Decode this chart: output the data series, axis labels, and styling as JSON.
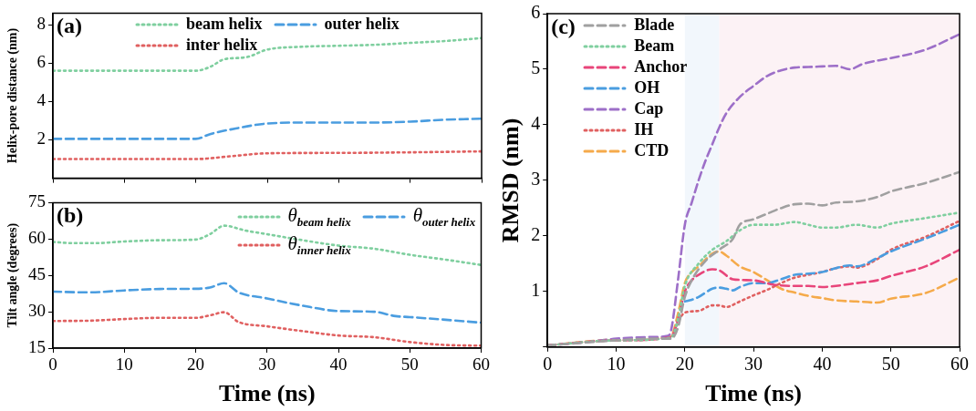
{
  "chart_data": [
    {
      "type": "line",
      "annotations": [
        "(a)"
      ],
      "ylabel": "Helix-pore distance (nm)",
      "xlim": [
        0,
        60
      ],
      "xticks": [
        0,
        10,
        20,
        30,
        40,
        50,
        60
      ],
      "ylim": [
        0,
        8.6
      ],
      "yticks": [
        2,
        4,
        6,
        8
      ],
      "tick_labels": "y",
      "legend": "top",
      "series": [
        {
          "name": "beam helix",
          "color": "#7fcf9f",
          "line_style": "dotted",
          "x": [
            0,
            5,
            10,
            15,
            20,
            22,
            24,
            27,
            30,
            35,
            40,
            45,
            50,
            55,
            60
          ],
          "values": [
            5.6,
            5.6,
            5.6,
            5.6,
            5.6,
            5.8,
            6.2,
            6.3,
            6.7,
            6.85,
            6.9,
            6.95,
            7.05,
            7.15,
            7.3
          ]
        },
        {
          "name": "outer helix",
          "color": "#4a9de0",
          "line_style": "dashed",
          "x": [
            0,
            5,
            10,
            15,
            20,
            22,
            25,
            30,
            35,
            40,
            45,
            50,
            55,
            60
          ],
          "values": [
            2.05,
            2.05,
            2.05,
            2.05,
            2.05,
            2.3,
            2.55,
            2.85,
            2.9,
            2.9,
            2.9,
            2.95,
            3.05,
            3.1
          ]
        },
        {
          "name": "inter  helix",
          "color": "#e06060",
          "line_style": "dotted",
          "x": [
            0,
            5,
            10,
            15,
            20,
            25,
            30,
            40,
            50,
            60
          ],
          "values": [
            1,
            1,
            1,
            1,
            1,
            1.15,
            1.3,
            1.32,
            1.35,
            1.4
          ]
        }
      ]
    },
    {
      "type": "line",
      "annotations": [
        "(b)"
      ],
      "xlabel": "Time (ns)",
      "ylabel": "Tilt angle (degrees)",
      "xlim": [
        0,
        60
      ],
      "xticks": [
        0,
        10,
        20,
        30,
        40,
        50,
        60
      ],
      "ylim": [
        15,
        75
      ],
      "yticks": [
        15,
        30,
        45,
        60,
        75
      ],
      "legend": "top right",
      "series": [
        {
          "name": "θ$_{beam helix}$",
          "color": "#7fcf9f",
          "line_style": "dotted",
          "x": [
            0,
            3,
            6,
            10,
            15,
            20,
            22,
            24,
            27,
            30,
            35,
            40,
            45,
            50,
            55,
            60
          ],
          "values": [
            58.8,
            58.3,
            58.3,
            59,
            59.5,
            59.8,
            62,
            65.5,
            63.5,
            62,
            59.5,
            57.3,
            56,
            53.5,
            51.5,
            49.3
          ]
        },
        {
          "name": "θ$_{outer helix}$",
          "color": "#4a9de0",
          "line_style": "dashed",
          "x": [
            0,
            5,
            10,
            15,
            20,
            22,
            24,
            26,
            30,
            35,
            40,
            45,
            48,
            50,
            55,
            60
          ],
          "values": [
            38.3,
            38,
            38.8,
            39.4,
            39.5,
            40,
            41.8,
            38,
            35.5,
            32.5,
            30.3,
            30,
            28.2,
            27.8,
            26.7,
            25.5
          ]
        },
        {
          "name": "θ$_{inner helix}$",
          "color": "#e06060",
          "line_style": "dotted",
          "x": [
            0,
            5,
            10,
            15,
            20,
            22,
            24,
            26,
            30,
            35,
            40,
            45,
            50,
            55,
            60
          ],
          "values": [
            26.2,
            26.3,
            27,
            27.5,
            27.5,
            28.5,
            29.8,
            25.8,
            24,
            22,
            20.2,
            19.5,
            17.5,
            16.3,
            16
          ]
        }
      ]
    },
    {
      "type": "line",
      "annotations": [
        "(c)"
      ],
      "xlabel": "Time (ns)",
      "ylabel": "RMSD (nm)",
      "xlim": [
        0,
        60
      ],
      "xticks": [
        0,
        10,
        20,
        30,
        40,
        50,
        60
      ],
      "ylim": [
        0,
        6
      ],
      "yticks": [
        {
          "value": 0,
          "label": null
        },
        1,
        2,
        3,
        4,
        5,
        6
      ],
      "legend": "top left",
      "bands": [
        {
          "axis": "x",
          "from": 20,
          "to": 25,
          "color": "#f2f7fc"
        },
        {
          "axis": "x",
          "from": 25,
          "to": 60,
          "color": "#fcf2f5"
        }
      ],
      "series": [
        {
          "name": "Blade",
          "color": "#a0a0a0",
          "line_style": "dashed",
          "x": [
            0,
            10,
            15,
            18,
            19,
            20,
            21,
            23,
            25,
            27,
            28,
            30,
            32,
            34,
            36,
            38,
            40,
            42,
            45,
            48,
            50,
            55,
            60
          ],
          "values": [
            0.03,
            0.12,
            0.15,
            0.15,
            0.35,
            0.9,
            1.2,
            1.55,
            1.75,
            1.95,
            2.2,
            2.3,
            2.4,
            2.5,
            2.57,
            2.58,
            2.55,
            2.6,
            2.62,
            2.7,
            2.8,
            2.95,
            3.15
          ]
        },
        {
          "name": "Beam",
          "color": "#7fcf9f",
          "line_style": "dotted",
          "x": [
            0,
            10,
            18,
            19,
            20,
            22,
            24,
            26,
            28,
            30,
            33,
            36,
            38,
            40,
            42,
            45,
            48,
            50,
            55,
            60
          ],
          "values": [
            0.03,
            0.12,
            0.17,
            0.5,
            1.1,
            1.5,
            1.75,
            1.9,
            2.1,
            2.2,
            2.2,
            2.25,
            2.2,
            2.15,
            2.15,
            2.2,
            2.15,
            2.22,
            2.32,
            2.42
          ]
        },
        {
          "name": "Anchor",
          "color": "#e8457a",
          "line_style": "dashed",
          "x": [
            0,
            10,
            18,
            19,
            20,
            21,
            22,
            24,
            25,
            27,
            30,
            33,
            36,
            38,
            40,
            42,
            45,
            48,
            50,
            55,
            60
          ],
          "values": [
            0.03,
            0.12,
            0.18,
            0.5,
            1,
            1.2,
            1.3,
            1.4,
            1.38,
            1.22,
            1.2,
            1.12,
            1.1,
            1.1,
            1.08,
            1.1,
            1.15,
            1.2,
            1.28,
            1.45,
            1.75
          ]
        },
        {
          "name": "OH",
          "color": "#4a9de0",
          "line_style": "dashed",
          "x": [
            20,
            21,
            22,
            24,
            25,
            26,
            27,
            28,
            30,
            32,
            34,
            36,
            38,
            40,
            42,
            44,
            45,
            48,
            50,
            55,
            60
          ],
          "values": [
            0.82,
            0.85,
            0.9,
            1.05,
            1.07,
            1.05,
            1.02,
            1.08,
            1.15,
            1.15,
            1.22,
            1.3,
            1.32,
            1.35,
            1.42,
            1.47,
            1.45,
            1.6,
            1.72,
            1.95,
            2.2
          ]
        },
        {
          "name": "Cap",
          "color": "#9d6fc8",
          "line_style": "dashed",
          "x": [
            0,
            5,
            10,
            15,
            17.5,
            18,
            19,
            20,
            21,
            22,
            23,
            24,
            25,
            26,
            28,
            30,
            32,
            34,
            36,
            38,
            40,
            42,
            44,
            46,
            50,
            55,
            60
          ],
          "values": [
            0.03,
            0.08,
            0.15,
            0.18,
            0.2,
            0.3,
            1.2,
            2.2,
            2.6,
            3,
            3.35,
            3.65,
            3.95,
            4.2,
            4.5,
            4.7,
            4.88,
            4.98,
            5.03,
            5.04,
            5.05,
            5.06,
            5,
            5.1,
            5.2,
            5.35,
            5.63
          ]
        },
        {
          "name": "IH",
          "color": "#e06060",
          "line_style": "dotted",
          "x": [
            0,
            10,
            18,
            19,
            20,
            22,
            24,
            25,
            26,
            28,
            30,
            32,
            34,
            36,
            38,
            40,
            42,
            44,
            45,
            48,
            50,
            55,
            60
          ],
          "values": [
            0.03,
            0.12,
            0.18,
            0.45,
            0.62,
            0.65,
            0.75,
            0.75,
            0.72,
            0.82,
            0.93,
            1.03,
            1.15,
            1.25,
            1.3,
            1.35,
            1.42,
            1.45,
            1.43,
            1.58,
            1.75,
            1.98,
            2.27
          ]
        },
        {
          "name": "CTD",
          "color": "#f5aa4a",
          "line_style": "dashed",
          "x": [
            0,
            10,
            18,
            19,
            20,
            21,
            22,
            24,
            25,
            26,
            28,
            30,
            32,
            34,
            36,
            38,
            40,
            42,
            45,
            48,
            50,
            55,
            60
          ],
          "values": [
            0.03,
            0.13,
            0.2,
            0.6,
            1.15,
            1.35,
            1.45,
            1.68,
            1.72,
            1.65,
            1.45,
            1.35,
            1.2,
            1.05,
            0.98,
            0.92,
            0.88,
            0.84,
            0.82,
            0.8,
            0.87,
            0.97,
            1.25
          ]
        }
      ]
    }
  ]
}
